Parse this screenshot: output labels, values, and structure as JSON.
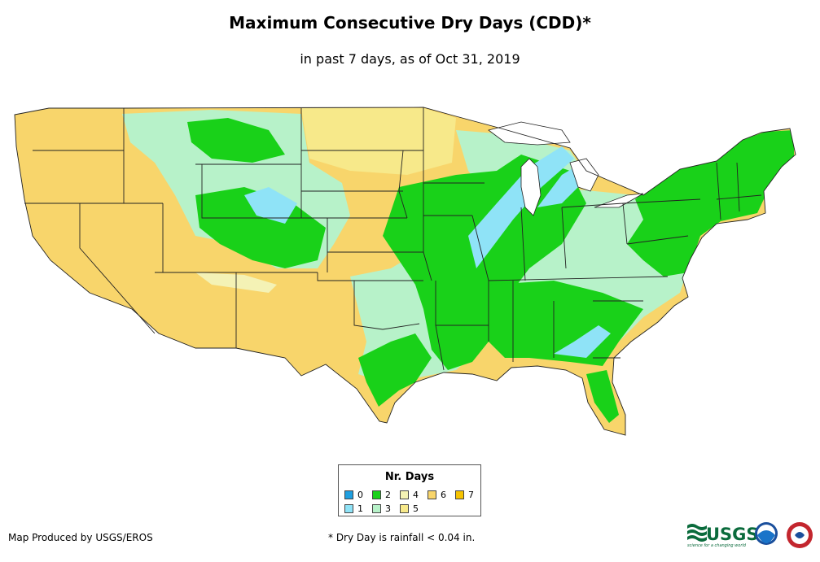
{
  "header": {
    "title": "Maximum Consecutive Dry Days (CDD)*",
    "subtitle": "in past 7 days, as of Oct 31, 2019"
  },
  "legend": {
    "title": "Nr. Days",
    "entries": [
      {
        "label": "0",
        "color": "#1f9fe0"
      },
      {
        "label": "1",
        "color": "#8fe3f7"
      },
      {
        "label": "2",
        "color": "#19d119"
      },
      {
        "label": "3",
        "color": "#b7f2c9"
      },
      {
        "label": "4",
        "color": "#f4f2b5"
      },
      {
        "label": "5",
        "color": "#f7e98a"
      },
      {
        "label": "6",
        "color": "#f8d56b"
      },
      {
        "label": "7",
        "color": "#f6c300"
      }
    ]
  },
  "footer": {
    "credit": "Map Produced by USGS/EROS",
    "note": "* Dry Day is rainfall < 0.04 in.",
    "usgs_logo_text": "USGS",
    "usgs_tagline": "science for a changing world"
  },
  "colors": {
    "state_border": "#222222"
  }
}
